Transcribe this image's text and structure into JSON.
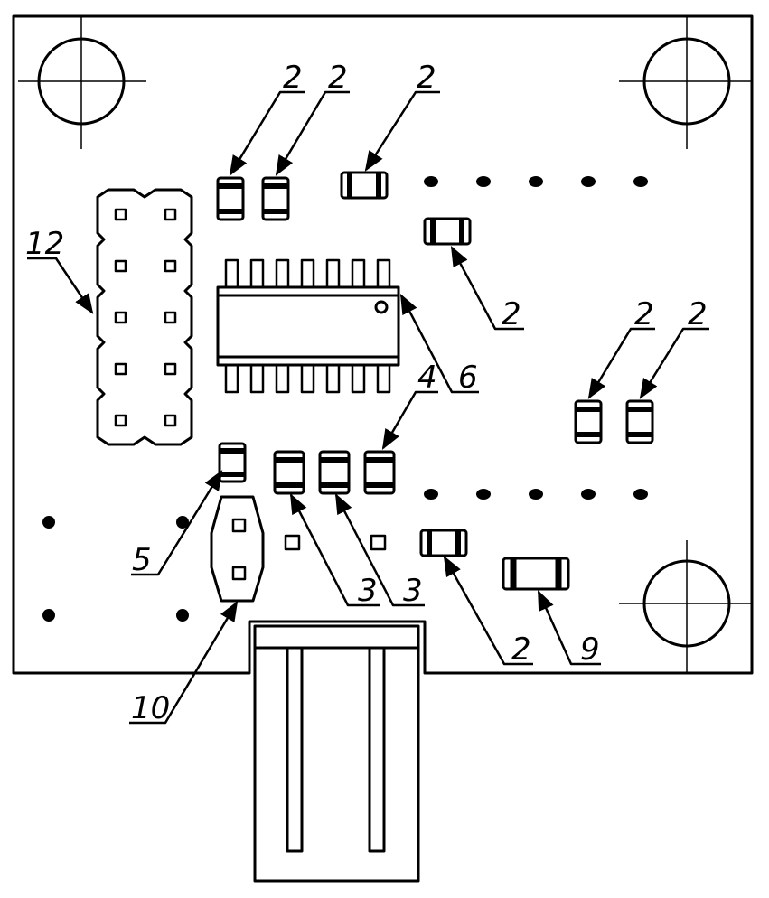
{
  "drawing": {
    "line_color": "#000000",
    "background": "#ffffff"
  },
  "callouts": [
    {
      "id": "c2a",
      "label": "2"
    },
    {
      "id": "c2b",
      "label": "2"
    },
    {
      "id": "c2c",
      "label": "2"
    },
    {
      "id": "c2d",
      "label": "2"
    },
    {
      "id": "c2e",
      "label": "2"
    },
    {
      "id": "c2f",
      "label": "2"
    },
    {
      "id": "c2g",
      "label": "2"
    },
    {
      "id": "c3a",
      "label": "3"
    },
    {
      "id": "c3b",
      "label": "3"
    },
    {
      "id": "c4",
      "label": "4"
    },
    {
      "id": "c5",
      "label": "5"
    },
    {
      "id": "c6",
      "label": "6"
    },
    {
      "id": "c9",
      "label": "9"
    },
    {
      "id": "c10",
      "label": "10"
    },
    {
      "id": "c12",
      "label": "12"
    }
  ]
}
